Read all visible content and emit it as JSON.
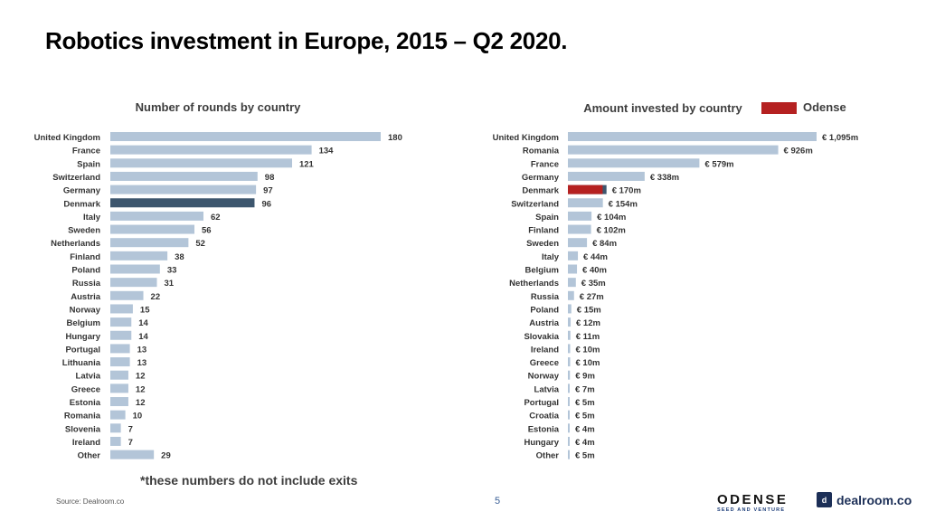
{
  "title": "Robotics investment in Europe, 2015 – Q2 2020.",
  "footnote": "*these numbers do not include exits",
  "source": "Source: Dealroom.co",
  "page_number": "5",
  "logos": {
    "odense_word": "ODENSE",
    "odense_sub": "SEED AND VENTURE",
    "dealroom_mark": "d",
    "dealroom_word": "dealroom.co"
  },
  "colors": {
    "bar": "#b3c5d8",
    "highlight_dark": "#3d566e",
    "odense_red": "#b52121",
    "label_text": "#333333",
    "title_text": "#3d3d3d"
  },
  "chart_data": [
    {
      "type": "bar",
      "orientation": "horizontal",
      "title": "Number of rounds by country",
      "highlight": "Denmark",
      "categories": [
        "United Kingdom",
        "France",
        "Spain",
        "Switzerland",
        "Germany",
        "Denmark",
        "Italy",
        "Sweden",
        "Netherlands",
        "Finland",
        "Poland",
        "Russia",
        "Austria",
        "Norway",
        "Belgium",
        "Hungary",
        "Portugal",
        "Lithuania",
        "Latvia",
        "Greece",
        "Estonia",
        "Romania",
        "Slovenia",
        "Ireland",
        "Other"
      ],
      "values": [
        180,
        134,
        121,
        98,
        97,
        96,
        62,
        56,
        52,
        38,
        33,
        31,
        22,
        15,
        14,
        14,
        13,
        13,
        12,
        12,
        12,
        10,
        7,
        7,
        29
      ],
      "value_labels": [
        "180",
        "134",
        "121",
        "98",
        "97",
        "96",
        "62",
        "56",
        "52",
        "38",
        "33",
        "31",
        "22",
        "15",
        "14",
        "14",
        "13",
        "13",
        "12",
        "12",
        "12",
        "10",
        "7",
        "7",
        "29"
      ]
    },
    {
      "type": "bar",
      "orientation": "horizontal",
      "title": "Amount invested by country",
      "unit": "€ m",
      "legend": [
        {
          "name": "Odense",
          "color": "#b52121"
        }
      ],
      "highlight": "Denmark",
      "highlight_note": "Denmark bar is largely colored as Odense share",
      "categories": [
        "United Kingdom",
        "Romania",
        "France",
        "Germany",
        "Denmark",
        "Switzerland",
        "Spain",
        "Finland",
        "Sweden",
        "Italy",
        "Belgium",
        "Netherlands",
        "Russia",
        "Poland",
        "Austria",
        "Slovakia",
        "Ireland",
        "Greece",
        "Norway",
        "Latvia",
        "Portugal",
        "Croatia",
        "Estonia",
        "Hungary",
        "Other"
      ],
      "values": [
        1095,
        926,
        579,
        338,
        170,
        154,
        104,
        102,
        84,
        44,
        40,
        35,
        27,
        15,
        12,
        11,
        10,
        10,
        9,
        7,
        5,
        5,
        4,
        4,
        5
      ],
      "value_labels": [
        "€ 1,095m",
        "€ 926m",
        "€ 579m",
        "€ 338m",
        "€ 170m",
        "€ 154m",
        "€ 104m",
        "€ 102m",
        "€ 84m",
        "€ 44m",
        "€ 40m",
        "€ 35m",
        "€ 27m",
        "€ 15m",
        "€ 12m",
        "€ 11m",
        "€ 10m",
        "€ 10m",
        "€ 9m",
        "€ 7m",
        "€ 5m",
        "€ 5m",
        "€ 4m",
        "€ 4m",
        "€ 5m"
      ]
    }
  ]
}
